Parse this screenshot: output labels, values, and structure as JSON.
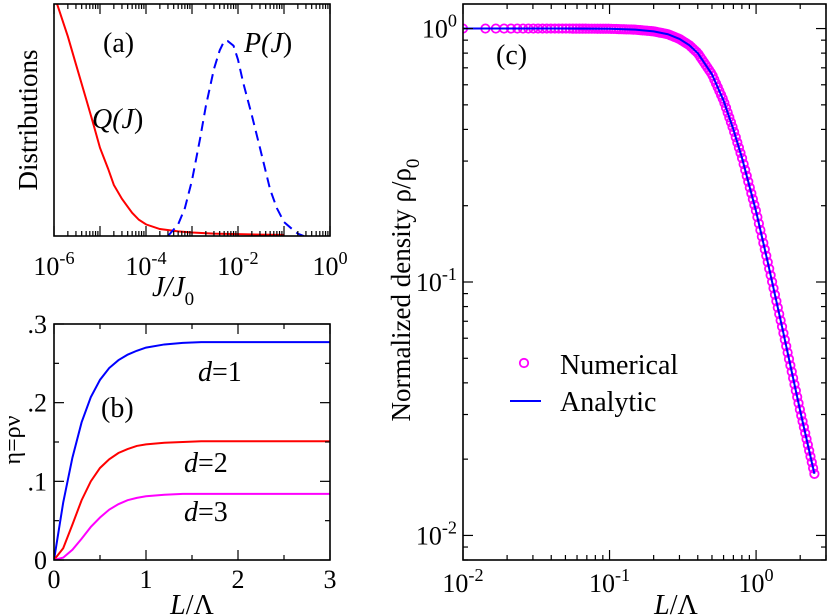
{
  "chart_data": [
    {
      "id": "a",
      "type": "line",
      "panel_label": "(a)",
      "xscale": "log",
      "ylabel": "Distributions",
      "xlabel_main": "J/J",
      "xlabel_sub": "0",
      "xlim": [
        1e-06,
        1
      ],
      "xtick_values": [
        1e-06,
        0.0001,
        0.01,
        1
      ],
      "xtick_base": "10",
      "xtick_exponents": [
        "-6",
        "-4",
        "-2",
        "0"
      ],
      "ylim": [
        0,
        1
      ],
      "series": [
        {
          "name": "Q(J)",
          "label_main": "Q(",
          "label_var": "J",
          "label_end": ")",
          "color": "#ff0000",
          "dash": "solid",
          "x": [
            1e-06,
            2e-06,
            3e-06,
            5e-06,
            7e-06,
            1e-05,
            1.5e-05,
            2e-05,
            3e-05,
            5e-05,
            7e-05,
            0.0001,
            0.0002,
            0.0005,
            0.001,
            0.003,
            0.01,
            0.03,
            0.1
          ],
          "y": [
            1.04,
            0.86,
            0.74,
            0.59,
            0.49,
            0.38,
            0.29,
            0.22,
            0.16,
            0.1,
            0.07,
            0.05,
            0.03,
            0.02,
            0.015,
            0.01,
            0.008,
            0.006,
            0.005
          ]
        },
        {
          "name": "P(J)",
          "label_main": "P(",
          "label_var": "J",
          "label_end": ")",
          "color": "#0000ff",
          "dash": "dashed",
          "x": [
            0.0003,
            0.0005,
            0.0007,
            0.001,
            0.0015,
            0.002,
            0.003,
            0.004,
            0.005,
            0.006,
            0.008,
            0.01,
            0.013,
            0.02,
            0.03,
            0.05,
            0.07,
            0.1,
            0.15,
            0.2,
            0.27
          ],
          "y": [
            0.0,
            0.05,
            0.12,
            0.24,
            0.42,
            0.56,
            0.72,
            0.8,
            0.84,
            0.84,
            0.82,
            0.76,
            0.66,
            0.52,
            0.38,
            0.2,
            0.12,
            0.06,
            0.03,
            0.01,
            0.0
          ]
        }
      ]
    },
    {
      "id": "b",
      "type": "line",
      "panel_label": "(b)",
      "xlabel": "L/Λ",
      "xlabel_var": "L",
      "xlabel_rest": "/Λ",
      "ylabel": "η=ρν",
      "xlim": [
        0,
        3
      ],
      "ylim": [
        0,
        0.3
      ],
      "xtick_values": [
        0,
        1,
        2,
        3
      ],
      "xtick_labels": [
        "0",
        "1",
        "2",
        "3"
      ],
      "ytick_values": [
        0,
        0.1,
        0.2,
        0.3
      ],
      "ytick_labels": [
        "0",
        ".1",
        ".2",
        ".3"
      ],
      "series": [
        {
          "name": "d=1",
          "label_var": "d",
          "label_rest": "=1",
          "color": "#0000ff",
          "x": [
            0,
            0.1,
            0.2,
            0.3,
            0.4,
            0.5,
            0.6,
            0.7,
            0.8,
            0.9,
            1.0,
            1.2,
            1.4,
            1.6,
            1.8,
            2.0,
            2.5,
            3.0
          ],
          "y": [
            0,
            0.073,
            0.13,
            0.175,
            0.207,
            0.229,
            0.244,
            0.254,
            0.261,
            0.266,
            0.27,
            0.274,
            0.276,
            0.277,
            0.277,
            0.277,
            0.277,
            0.277
          ]
        },
        {
          "name": "d=2",
          "label_var": "d",
          "label_rest": "=2",
          "color": "#ff0000",
          "x": [
            0,
            0.1,
            0.2,
            0.3,
            0.4,
            0.5,
            0.6,
            0.7,
            0.8,
            0.9,
            1.0,
            1.2,
            1.4,
            1.6,
            1.8,
            2.0,
            2.5,
            3.0
          ],
          "y": [
            0,
            0.015,
            0.045,
            0.076,
            0.1,
            0.117,
            0.128,
            0.136,
            0.141,
            0.145,
            0.147,
            0.149,
            0.15,
            0.151,
            0.151,
            0.151,
            0.151,
            0.151
          ]
        },
        {
          "name": "d=3",
          "label_var": "d",
          "label_rest": "=3",
          "color": "#ff00ff",
          "x": [
            0,
            0.1,
            0.2,
            0.3,
            0.4,
            0.5,
            0.6,
            0.7,
            0.8,
            0.9,
            1.0,
            1.2,
            1.4,
            1.6,
            1.8,
            2.0,
            2.5,
            3.0
          ],
          "y": [
            0,
            0.003,
            0.013,
            0.027,
            0.042,
            0.054,
            0.064,
            0.071,
            0.076,
            0.079,
            0.081,
            0.083,
            0.084,
            0.084,
            0.084,
            0.084,
            0.084,
            0.084
          ]
        }
      ]
    },
    {
      "id": "c",
      "type": "line",
      "panel_label": "(c)",
      "xscale": "log",
      "yscale": "log",
      "xlabel": "L/Λ",
      "xlabel_var": "L",
      "xlabel_rest": "/Λ",
      "ylabel": "Normalized density ρ/ρ",
      "ylabel_sub": "0",
      "xlim": [
        0.01,
        3
      ],
      "ylim": [
        0.008,
        1.25
      ],
      "xtick_values": [
        0.01,
        0.1,
        1
      ],
      "xtick_base": "10",
      "xtick_exponents": [
        "-2",
        "-1",
        "0"
      ],
      "ytick_values": [
        0.01,
        0.1,
        1
      ],
      "ytick_base": "10",
      "ytick_exponents": [
        "-2",
        "-1",
        "0"
      ],
      "legend": [
        {
          "label": "Numerical",
          "marker": "circle",
          "color": "#ff00ff"
        },
        {
          "label": "Analytic",
          "marker": "line",
          "color": "#0000ff"
        }
      ],
      "legend_position": "center-left",
      "analytic_x": [
        0.01,
        0.02,
        0.05,
        0.1,
        0.15,
        0.2,
        0.25,
        0.3,
        0.35,
        0.4,
        0.5,
        0.6,
        0.7,
        0.8,
        1.0,
        1.2,
        1.5,
        2.0,
        2.5
      ],
      "analytic_y": [
        1.0,
        1.0,
        1.0,
        0.998,
        0.99,
        0.975,
        0.95,
        0.91,
        0.86,
        0.8,
        0.66,
        0.52,
        0.4,
        0.31,
        0.19,
        0.12,
        0.067,
        0.031,
        0.0175
      ],
      "numerical_x_range": [
        0.01,
        2.5
      ],
      "numerical_point_count": 150
    }
  ]
}
